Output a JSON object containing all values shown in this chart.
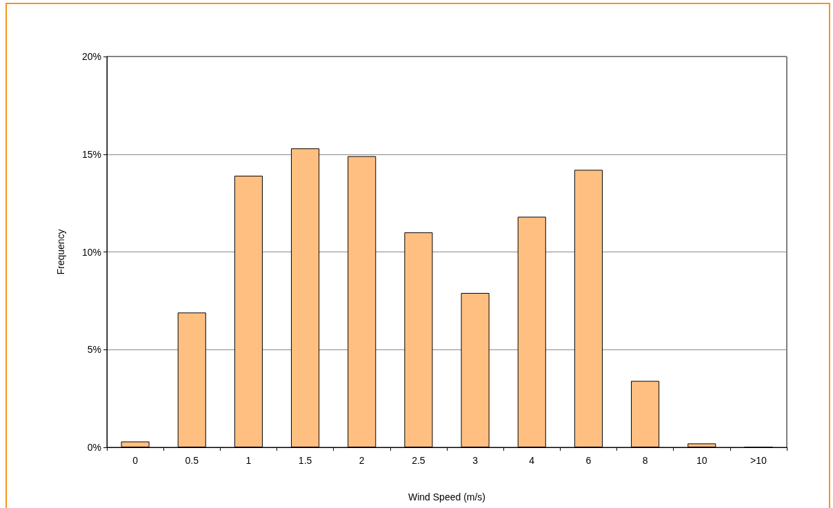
{
  "chart_data": {
    "type": "bar",
    "xlabel": "Wind Speed (m/s)",
    "ylabel": "Frequency",
    "categories": [
      "0",
      "0.5",
      "1",
      "1.5",
      "2",
      "2.5",
      "3",
      "4",
      "6",
      "8",
      "10",
      ">10"
    ],
    "values": [
      0.3,
      6.9,
      13.9,
      15.3,
      14.9,
      11.0,
      7.9,
      11.8,
      14.2,
      3.4,
      0.2,
      0
    ],
    "color": "#ffbf80",
    "ylim": [
      0,
      20
    ],
    "yticks": [
      {
        "value": 0,
        "label": "0%"
      },
      {
        "value": 5,
        "label": "5%"
      },
      {
        "value": 10,
        "label": "10%"
      },
      {
        "value": 15,
        "label": "15%"
      },
      {
        "value": 20,
        "label": "20%"
      }
    ],
    "grid": "y"
  }
}
